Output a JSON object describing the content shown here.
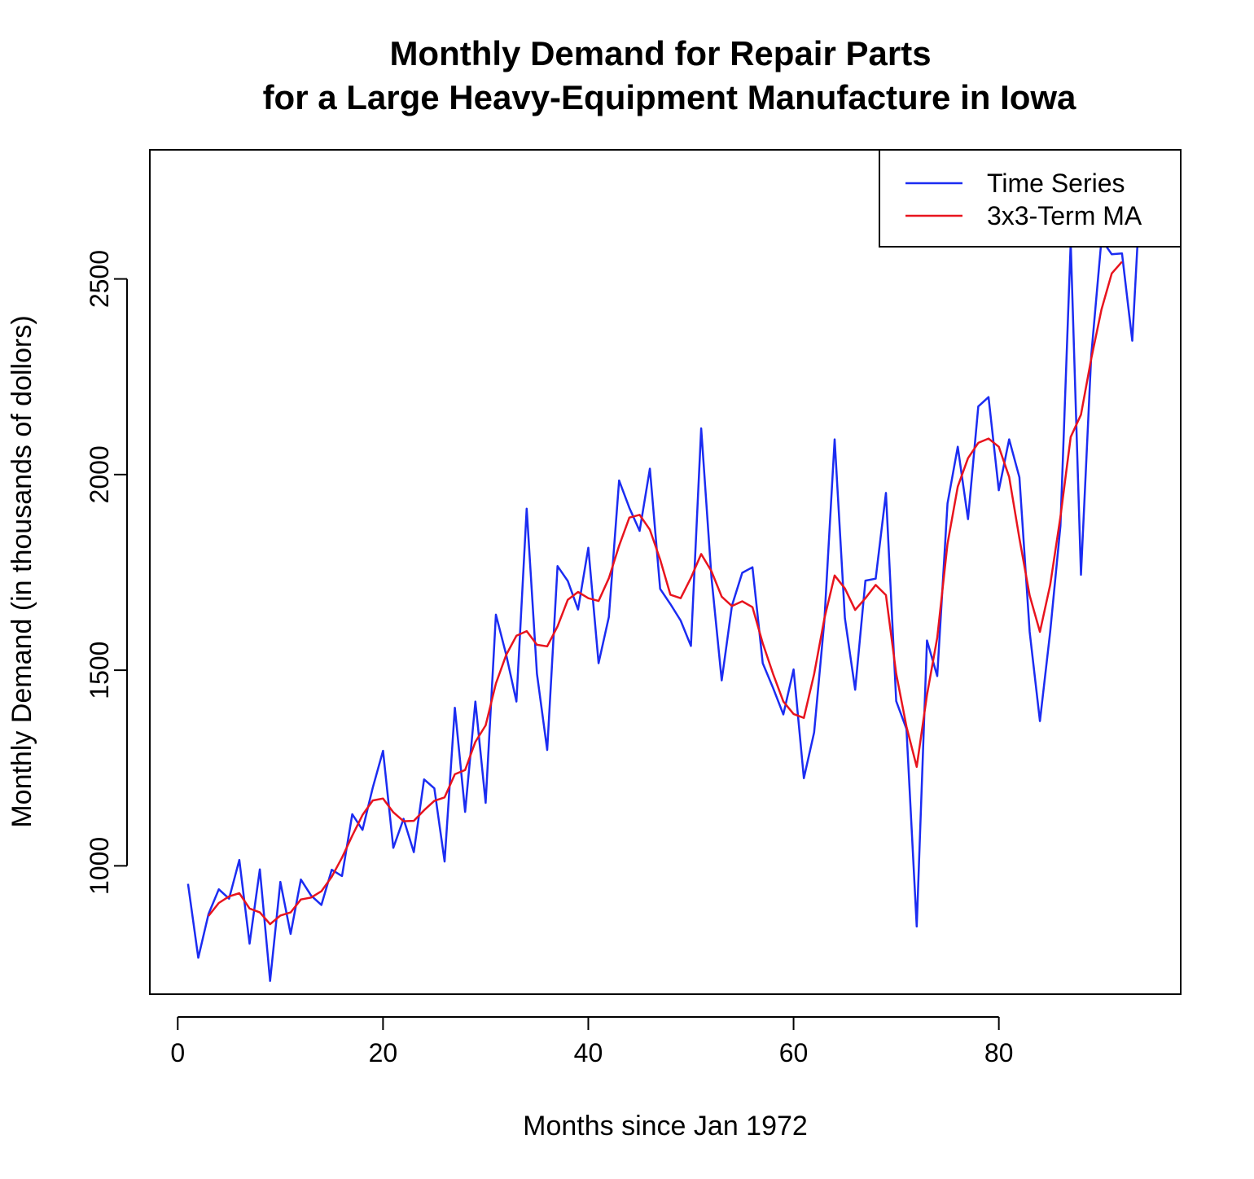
{
  "chart_data": {
    "type": "line",
    "title": "Monthly Demand for Repair Parts",
    "subtitle": "for a Large Heavy-Equipment Manufacture in Iowa",
    "xlabel": "Months since Jan 1972",
    "ylabel": "Monthly Demand (in thousands of dollors)",
    "xlim": [
      -2.72,
      97.72
    ],
    "ylim": [
      672,
      2830
    ],
    "x_ticks": [
      0,
      20,
      40,
      60,
      80
    ],
    "y_ticks": [
      1000,
      1500,
      2000,
      2500
    ],
    "grid": false,
    "legend_position": "top-right",
    "series": [
      {
        "name": "Time Series",
        "color": "#1b2cf2",
        "x": [
          1,
          2,
          3,
          4,
          5,
          6,
          7,
          8,
          9,
          10,
          11,
          12,
          13,
          14,
          15,
          16,
          17,
          18,
          19,
          20,
          21,
          22,
          23,
          24,
          25,
          26,
          27,
          28,
          29,
          30,
          31,
          32,
          33,
          34,
          35,
          36,
          37,
          38,
          39,
          40,
          41,
          42,
          43,
          44,
          45,
          46,
          47,
          48,
          49,
          50,
          51,
          52,
          53,
          54,
          55,
          56,
          57,
          58,
          59,
          60,
          61,
          62,
          63,
          64,
          65,
          66,
          67,
          68,
          69,
          70,
          71,
          72,
          73,
          74,
          75,
          76,
          77,
          78,
          79,
          80,
          81,
          82,
          83,
          84,
          85,
          86,
          87,
          88,
          89,
          90,
          91,
          92,
          93,
          94
        ],
        "values": [
          954,
          765,
          877,
          940,
          916,
          1015,
          801,
          991,
          706,
          959,
          826,
          965,
          924,
          900,
          990,
          974,
          1132,
          1092,
          1200,
          1294,
          1046,
          1120,
          1035,
          1221,
          1198,
          1011,
          1404,
          1138,
          1420,
          1161,
          1642,
          1540,
          1420,
          1913,
          1491,
          1296,
          1766,
          1728,
          1655,
          1813,
          1518,
          1636,
          1985,
          1915,
          1856,
          2015,
          1708,
          1669,
          1627,
          1562,
          2118,
          1738,
          1474,
          1665,
          1749,
          1763,
          1518,
          1455,
          1387,
          1502,
          1224,
          1341,
          1627,
          2090,
          1633,
          1450,
          1729,
          1734,
          1953,
          1421,
          1350,
          845,
          1576,
          1485,
          1926,
          2071,
          1886,
          2174,
          2198,
          1960,
          2090,
          1993,
          1598,
          1370,
          1598,
          1869,
          2593,
          1744,
          2304,
          2601,
          2563,
          2565,
          2342,
          2827
        ]
      },
      {
        "name": "3x3-Term MA",
        "color": "#e8141e",
        "x": [
          3,
          4,
          5,
          6,
          7,
          8,
          9,
          10,
          11,
          12,
          13,
          14,
          15,
          16,
          17,
          18,
          19,
          20,
          21,
          22,
          23,
          24,
          25,
          26,
          27,
          28,
          29,
          30,
          31,
          32,
          33,
          34,
          35,
          36,
          37,
          38,
          39,
          40,
          41,
          42,
          43,
          44,
          45,
          46,
          47,
          48,
          49,
          50,
          51,
          52,
          53,
          54,
          55,
          56,
          57,
          58,
          59,
          60,
          61,
          62,
          63,
          64,
          65,
          66,
          67,
          68,
          69,
          70,
          71,
          72,
          73,
          74,
          75,
          76,
          77,
          78,
          79,
          80,
          81,
          82,
          83,
          84,
          85,
          86,
          87,
          88,
          89,
          90,
          91,
          92
        ],
        "values": [
          872,
          905,
          922,
          930,
          891,
          881,
          851,
          873,
          881,
          914,
          919,
          935,
          972,
          1021,
          1077,
          1130,
          1167,
          1172,
          1137,
          1114,
          1115,
          1142,
          1166,
          1175,
          1234,
          1245,
          1317,
          1359,
          1466,
          1539,
          1588,
          1600,
          1565,
          1561,
          1612,
          1680,
          1700,
          1684,
          1677,
          1735,
          1818,
          1890,
          1897,
          1859,
          1783,
          1693,
          1684,
          1736,
          1797,
          1753,
          1688,
          1664,
          1676,
          1661,
          1569,
          1491,
          1420,
          1388,
          1378,
          1490,
          1632,
          1742,
          1709,
          1654,
          1684,
          1718,
          1692,
          1491,
          1356,
          1253,
          1437,
          1583,
          1823,
          1969,
          2042,
          2081,
          2092,
          2071,
          1994,
          1837,
          1691,
          1598,
          1718,
          1892,
          2096,
          2153,
          2296,
          2422,
          2514,
          2544
        ]
      }
    ]
  }
}
